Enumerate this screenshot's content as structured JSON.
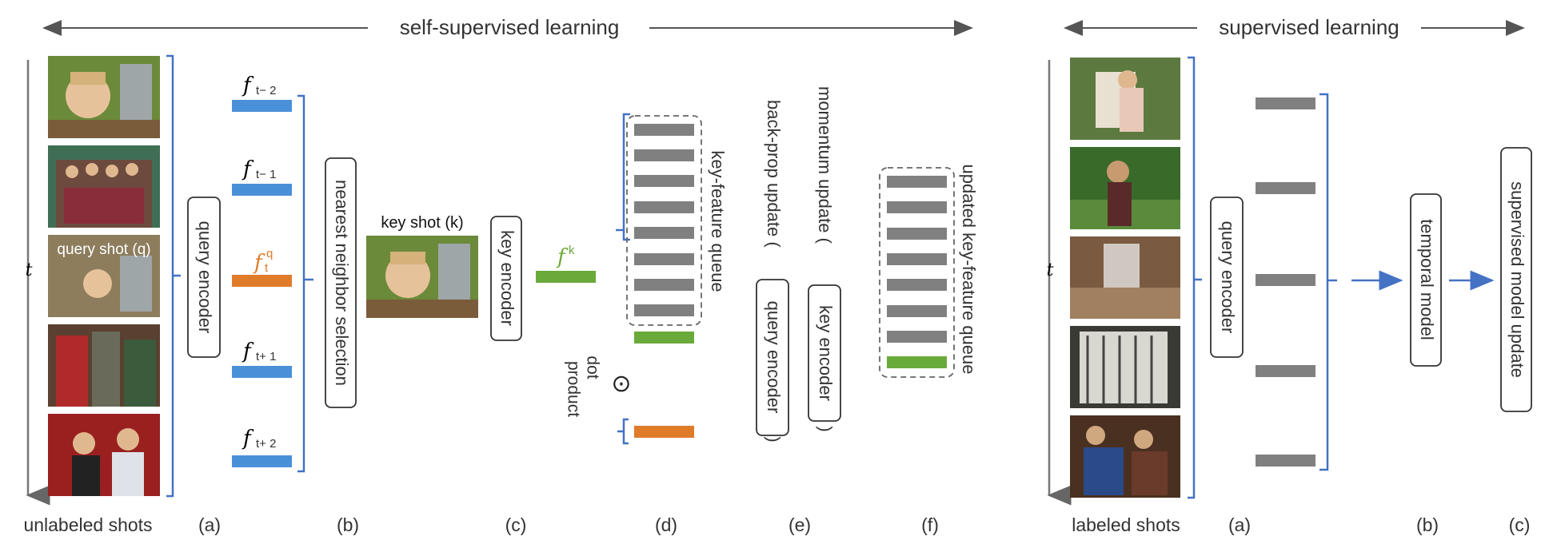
{
  "self_supervised": {
    "header": "self-supervised learning",
    "time_axis_label": "t",
    "query_shot_label": "query shot (q)",
    "key_shot_label": "key shot (k)",
    "query_encoder": "query encoder",
    "nearest_neighbor": "nearest neighbor selection",
    "key_encoder": "key encoder",
    "features": [
      {
        "symbol": "f",
        "sub": "t− 2",
        "sup": "",
        "color": "#4a90d9"
      },
      {
        "symbol": "f",
        "sub": "t− 1",
        "sup": "",
        "color": "#4a90d9"
      },
      {
        "symbol": "f",
        "sub": "t",
        "sup": "q",
        "color": "#e07b2a"
      },
      {
        "symbol": "f",
        "sub": "t+ 1",
        "sup": "",
        "color": "#4a90d9"
      },
      {
        "symbol": "f",
        "sub": "t+ 2",
        "sup": "",
        "color": "#4a90d9"
      }
    ],
    "key_feature": {
      "symbol": "f",
      "sup": "k",
      "color": "#6aaa3a"
    },
    "queue_label": "key-feature queue",
    "dot_product_symbol": "⊙",
    "dot_label": "dot",
    "product_label": "product",
    "backprop_label": "back-prop update (",
    "backprop_box": "query encoder",
    "backprop_close": ")",
    "momentum_label": "momentum update (",
    "momentum_box": "key encoder",
    "momentum_close": ")",
    "updated_queue_label": "updated key-feature queue",
    "bottom_labels": [
      "unlabeled shots",
      "(a)",
      "(b)",
      "(c)",
      "(d)",
      "(e)",
      "(f)"
    ]
  },
  "supervised": {
    "header": "supervised learning",
    "time_axis_label": "t",
    "query_encoder": "query encoder",
    "temporal_model": "temporal model",
    "model_update": "supervised  model update",
    "bottom_labels": [
      "labeled shots",
      "(a)",
      "(b)",
      "(c)"
    ]
  },
  "colors": {
    "blue": "#4a90d9",
    "orange": "#e07b2a",
    "green": "#6aaa3a",
    "gray": "#808080",
    "bracket": "#4472c4"
  }
}
